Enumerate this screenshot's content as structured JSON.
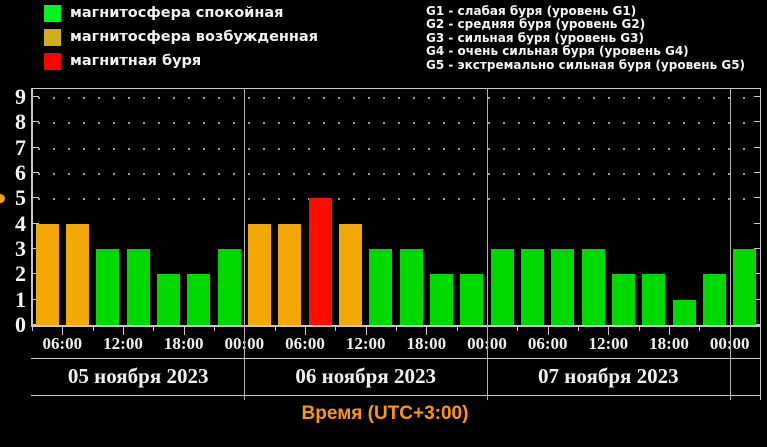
{
  "legend": {
    "items": [
      {
        "label": "магнитосфера спокойная",
        "color": "#00f41e"
      },
      {
        "label": "магнитосфера возбужденная",
        "color": "#d4ad1b"
      },
      {
        "label": "магнитная буря",
        "color": "#ff0000"
      }
    ]
  },
  "storm_levels": [
    "G1 - слабая буря (уровень G1)",
    "G2 - средняя буря (уровень G2)",
    "G3 - сильная буря (уровень G3)",
    "G4 - очень сильная буря (уровень G4)",
    "G5 - экстремально сильная буря (уровень G5)"
  ],
  "chart_data": {
    "type": "bar",
    "xlabel": "Время (UTC+3:00)",
    "ylim": [
      0,
      9
    ],
    "yticks": [
      0,
      1,
      2,
      3,
      4,
      5,
      6,
      7,
      8,
      9
    ],
    "grid_levels": [
      5,
      6,
      7,
      8,
      9
    ],
    "axis_color": "#c8c8c8",
    "separator_color": "#b4b4b4",
    "grid_dot_color": "#9a9a9a",
    "colors": {
      "quiet": "#00d900",
      "excited": "#f2a702",
      "storm": "#ff0d00"
    },
    "time_ticks": [
      "06:00",
      "12:00",
      "18:00",
      "00:00",
      "06:00",
      "12:00",
      "18:00",
      "00:00",
      "06:00",
      "12:00",
      "18:00",
      "00:00"
    ],
    "days": [
      {
        "date": "05 ноября 2023",
        "bars": [
          {
            "time": "03:00",
            "kp": 4,
            "state": "excited"
          },
          {
            "time": "06:00",
            "kp": 4,
            "state": "excited"
          },
          {
            "time": "09:00",
            "kp": 3,
            "state": "quiet"
          },
          {
            "time": "12:00",
            "kp": 3,
            "state": "quiet"
          },
          {
            "time": "15:00",
            "kp": 2,
            "state": "quiet"
          },
          {
            "time": "18:00",
            "kp": 2,
            "state": "quiet"
          },
          {
            "time": "21:00",
            "kp": 3,
            "state": "quiet"
          }
        ]
      },
      {
        "date": "06 ноября 2023",
        "bars": [
          {
            "time": "00:00",
            "kp": 4,
            "state": "excited"
          },
          {
            "time": "03:00",
            "kp": 4,
            "state": "excited"
          },
          {
            "time": "06:00",
            "kp": 5,
            "state": "storm"
          },
          {
            "time": "09:00",
            "kp": 4,
            "state": "excited"
          },
          {
            "time": "12:00",
            "kp": 3,
            "state": "quiet"
          },
          {
            "time": "15:00",
            "kp": 3,
            "state": "quiet"
          },
          {
            "time": "18:00",
            "kp": 2,
            "state": "quiet"
          },
          {
            "time": "21:00",
            "kp": 2,
            "state": "quiet"
          }
        ]
      },
      {
        "date": "07 ноября 2023",
        "bars": [
          {
            "time": "00:00",
            "kp": 3,
            "state": "quiet"
          },
          {
            "time": "03:00",
            "kp": 3,
            "state": "quiet"
          },
          {
            "time": "06:00",
            "kp": 3,
            "state": "quiet"
          },
          {
            "time": "09:00",
            "kp": 3,
            "state": "quiet"
          },
          {
            "time": "12:00",
            "kp": 2,
            "state": "quiet"
          },
          {
            "time": "15:00",
            "kp": 2,
            "state": "quiet"
          },
          {
            "time": "18:00",
            "kp": 1,
            "state": "quiet"
          },
          {
            "time": "21:00",
            "kp": 2,
            "state": "quiet"
          }
        ]
      },
      {
        "date": "",
        "bars": [
          {
            "time": "00:00",
            "kp": 3,
            "state": "quiet"
          }
        ]
      }
    ]
  }
}
